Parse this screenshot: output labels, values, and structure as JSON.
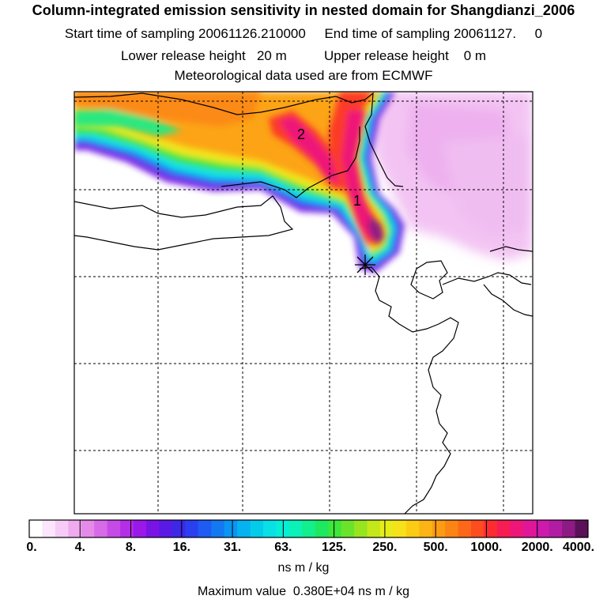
{
  "title": "Column-integrated emission sensitivity in nested domain for Shangdianzi_2006",
  "sampling": {
    "start_label": "Start time of sampling",
    "start_value": "20061126.210000",
    "end_label": "End time of sampling",
    "end_value": "20061127.     0"
  },
  "release": {
    "lower_label": "Lower release height",
    "lower_value": "20 m",
    "upper_label": "Upper release height",
    "upper_value": "0 m"
  },
  "met_line": "Meteorological data used are from ECMWF",
  "contour_labels": [
    "2",
    "1"
  ],
  "colorbar": {
    "tick_labels": [
      "0.",
      "4.",
      "8.",
      "16.",
      "31.",
      "63.",
      "125.",
      "250.",
      "500.",
      "1000.",
      "2000.",
      "4000."
    ],
    "colors": [
      "#ffffff",
      "#fbe6fb",
      "#f6ccf6",
      "#efaaf0",
      "#e58ae9",
      "#d76ae6",
      "#c64ae6",
      "#b32ee6",
      "#9a19e8",
      "#7a14e6",
      "#5a1ae6",
      "#3d28e8",
      "#2a3ff0",
      "#1e5bf2",
      "#1478f2",
      "#0a95f2",
      "#06b2f0",
      "#05cbea",
      "#08e0e6",
      "#06eed6",
      "#0af2b8",
      "#12ef8c",
      "#1ee860",
      "#3ce63a",
      "#6ae42a",
      "#98e41e",
      "#c4e81a",
      "#e6ec1a",
      "#f7e21a",
      "#fccc14",
      "#fcb414",
      "#fc9c14",
      "#fc8414",
      "#fc6818",
      "#fc4c20",
      "#fc2c32",
      "#f81c54",
      "#ee1678",
      "#e0169a",
      "#cc1aac",
      "#b21ca2",
      "#8e1a84",
      "#5c1058"
    ],
    "units": "ns m / kg"
  },
  "max_value_text": "Maximum value  0.380E+04 ns m / kg"
}
